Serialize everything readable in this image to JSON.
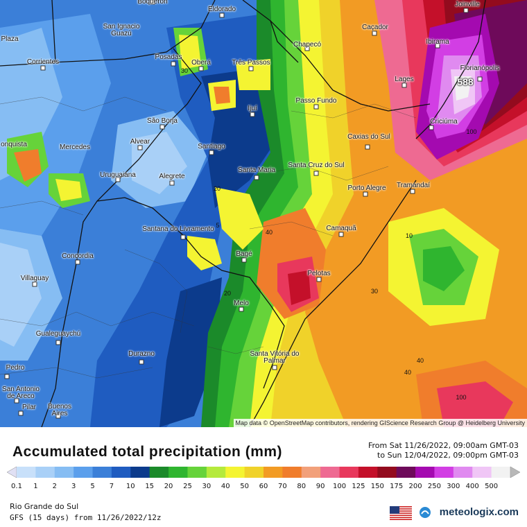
{
  "title": "Accumulated total precipitation (mm)",
  "date_from": "From Sat 11/26/2022, 09:00am GMT-03",
  "date_to": "to Sun 12/04/2022, 09:00pm GMT-03",
  "region": "Rio Grande do Sul",
  "model": "GFS (15 days) from 11/26/2022/12z",
  "brand": "meteologix.com",
  "attribution": "Map data © OpenStreetMap contributors, rendering GIScience Research Group @ Heidelberg University",
  "max_value": "588",
  "legend_ticks": [
    "0.1",
    "1",
    "2",
    "3",
    "5",
    "7",
    "10",
    "15",
    "20",
    "25",
    "30",
    "40",
    "50",
    "60",
    "70",
    "80",
    "90",
    "100",
    "125",
    "150",
    "175",
    "200",
    "250",
    "300",
    "400",
    "500"
  ],
  "legend_colors": [
    "#e0e0f4",
    "#c8e0fa",
    "#a9d0f7",
    "#86bdf3",
    "#5b9fec",
    "#3b7fd8",
    "#1f5cc0",
    "#0c3b8c",
    "#1b8a2a",
    "#2fb52f",
    "#66d33a",
    "#b5ea3c",
    "#f4f432",
    "#f0d22a",
    "#f29b24",
    "#f07d2c",
    "#f2a07a",
    "#ee6a92",
    "#e8385c",
    "#c4102a",
    "#930b1e",
    "#6e0a5a",
    "#a40ab0",
    "#d23ee4",
    "#e08af0",
    "#f0c6f6",
    "#f2f2f2",
    "#b8b8b8"
  ],
  "cities": [
    {
      "name": "Boqueron"
    },
    {
      "name": "Eldorado"
    },
    {
      "name": "Joinville"
    },
    {
      "name": "San Ignacio Guazú"
    },
    {
      "name": "Caçador"
    },
    {
      "name": "Chapecó"
    },
    {
      "name": "Ibirama"
    },
    {
      "name": "Posadas"
    },
    {
      "name": "Oberá"
    },
    {
      "name": "Três Passos"
    },
    {
      "name": "Florianópolis"
    },
    {
      "name": "Corrientes"
    },
    {
      "name": "Lages"
    },
    {
      "name": "Passo Fundo"
    },
    {
      "name": "Ijuí"
    },
    {
      "name": "Criciúma"
    },
    {
      "name": "São Borja"
    },
    {
      "name": "Mercedes"
    },
    {
      "name": "Alvear"
    },
    {
      "name": "Santiago"
    },
    {
      "name": "Caxias do Sul"
    },
    {
      "name": "Santa Maria"
    },
    {
      "name": "Santa Cruz do Sul"
    },
    {
      "name": "Uruguaiana"
    },
    {
      "name": "Alegrete"
    },
    {
      "name": "Porto Alegre"
    },
    {
      "name": "Tramandaí"
    },
    {
      "name": "Santana do Livramento"
    },
    {
      "name": "Camaquã"
    },
    {
      "name": "Concordia"
    },
    {
      "name": "Bagé"
    },
    {
      "name": "Villaguay"
    },
    {
      "name": "Pelotas"
    },
    {
      "name": "Melo"
    },
    {
      "name": "Gualeguaychú"
    },
    {
      "name": "Durazno"
    },
    {
      "name": "Santa Vitória do Palmar"
    },
    {
      "name": "Pedro"
    },
    {
      "name": "San Antonio de Areco"
    },
    {
      "name": "Pilar"
    },
    {
      "name": "Buenos Aires"
    },
    {
      "name": "Plaza"
    },
    {
      "name": "onquista"
    }
  ],
  "contour_labels": [
    "30",
    "40",
    "10",
    "5",
    "20",
    "20",
    "40",
    "30",
    "100",
    "40",
    "100"
  ]
}
